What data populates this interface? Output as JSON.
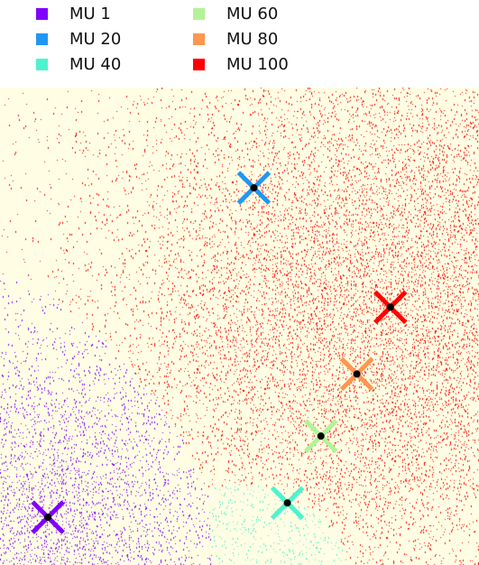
{
  "chart_data": {
    "type": "scatter",
    "title": "",
    "xlabel": "",
    "ylabel": "",
    "grid": false,
    "axes_visible": false,
    "background_color": "#fffee4",
    "legend_position": "top-left",
    "series": [
      {
        "name": "MU 1",
        "color": "#8000ff",
        "marker": {
          "x": 0.1,
          "y": 0.1
        }
      },
      {
        "name": "MU 20",
        "color": "#2196f3",
        "marker": {
          "x": 0.53,
          "y": 0.79
        }
      },
      {
        "name": "MU 40",
        "color": "#4df3ce",
        "marker": {
          "x": 0.6,
          "y": 0.13
        }
      },
      {
        "name": "MU 60",
        "color": "#b2f396",
        "marker": {
          "x": 0.67,
          "y": 0.27
        }
      },
      {
        "name": "MU 80",
        "color": "#ff964f",
        "marker": {
          "x": 0.745,
          "y": 0.4
        }
      },
      {
        "name": "MU 100",
        "color": "#ff0000",
        "marker": {
          "x": 0.815,
          "y": 0.54
        }
      }
    ]
  }
}
